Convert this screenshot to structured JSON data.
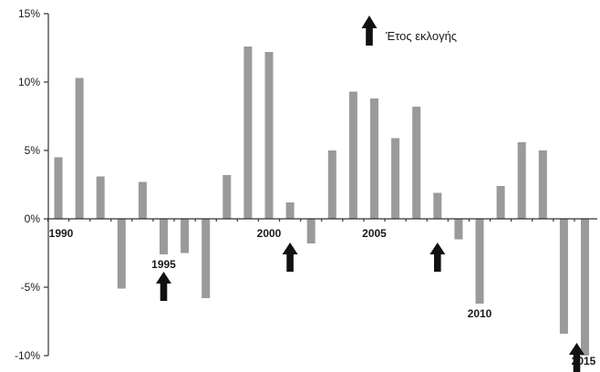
{
  "chart_data": {
    "type": "bar",
    "title": "",
    "xlabel": "",
    "ylabel": "",
    "ylim": [
      -10,
      15
    ],
    "yticks": [
      15,
      10,
      5,
      0,
      -5,
      -10
    ],
    "ytick_labels": [
      "15%",
      "10%",
      "5%",
      "0%",
      "-5%",
      "-10%"
    ],
    "categories": [
      1990,
      1991,
      1992,
      1993,
      1994,
      1995,
      1996,
      1997,
      1998,
      1999,
      2000,
      2001,
      2002,
      2003,
      2004,
      2005,
      2006,
      2007,
      2008,
      2009,
      2010,
      2011,
      2012,
      2013,
      2014,
      2015
    ],
    "values": [
      4.5,
      10.3,
      3.1,
      -5.1,
      2.7,
      -2.6,
      -2.5,
      -5.8,
      3.2,
      12.6,
      12.2,
      1.2,
      -1.8,
      5.0,
      9.3,
      8.8,
      5.9,
      8.2,
      1.9,
      -1.5,
      -6.2,
      2.4,
      5.6,
      5.0,
      -8.4,
      -10.0
    ],
    "year_labels": [
      {
        "year": 1990,
        "text": "1990"
      },
      {
        "year": 1995,
        "text": "1995"
      },
      {
        "year": 2000,
        "text": "2000"
      },
      {
        "year": 2005,
        "text": "2005"
      },
      {
        "year": 2010,
        "text": "2010"
      },
      {
        "year": 2015,
        "text": "2015"
      }
    ],
    "election_years": [
      1995,
      2001,
      2008,
      2015
    ],
    "legend": {
      "label": "Έτος εκλογής",
      "marker": "up-arrow-icon",
      "position": "top"
    },
    "colors": {
      "bar": "#9a9a9a",
      "arrow": "#111111",
      "axis": "#333333"
    }
  }
}
